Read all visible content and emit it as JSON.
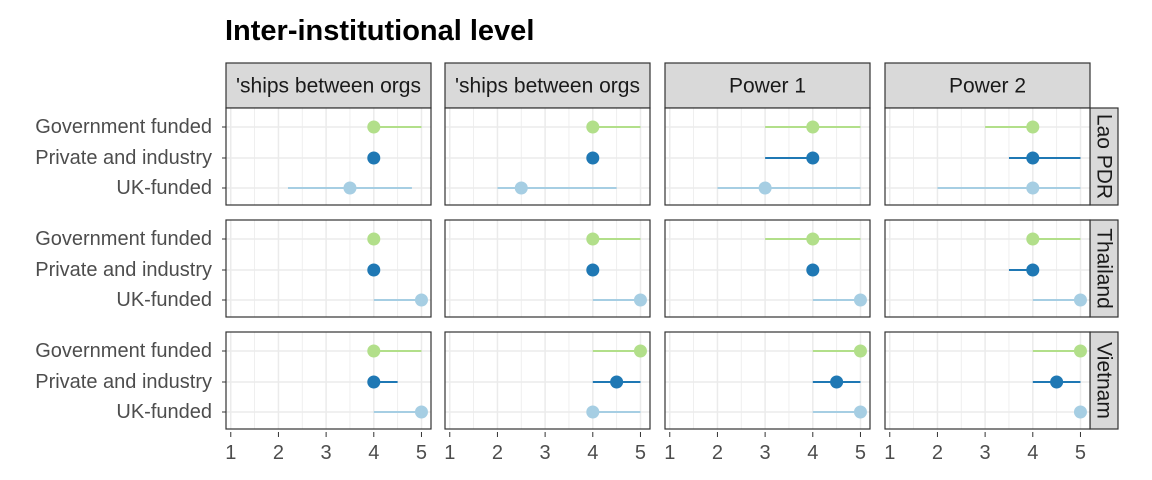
{
  "chart_data": {
    "type": "scatter",
    "title": "Inter-institutional level",
    "columns": [
      "'ships between orgs",
      "'ships between orgs",
      "Power 1",
      "Power 2"
    ],
    "rows": [
      "Lao PDR",
      "Thailand",
      "Vietnam"
    ],
    "categories": [
      "Government funded",
      "Private and industry",
      "UK-funded"
    ],
    "xlim": [
      0.9,
      5.2
    ],
    "x_ticks": [
      1,
      2,
      3,
      4,
      5
    ],
    "grid": true,
    "colors": {
      "Government funded": "#b2df8a",
      "Private and industry": "#1f78b4",
      "UK-funded": "#a6cee3",
      "strip_fill": "#d9d9d9",
      "grid": "#ebebeb",
      "border": "#333333"
    },
    "panels": [
      [
        [
          {
            "point": 4,
            "range": [
              4,
              5
            ]
          },
          {
            "point": 4,
            "range": [
              4,
              4
            ]
          },
          {
            "point": 3.5,
            "range": [
              2.2,
              4.8
            ]
          }
        ],
        [
          {
            "point": 4,
            "range": [
              4,
              5
            ]
          },
          {
            "point": 4,
            "range": [
              4,
              4
            ]
          },
          {
            "point": 2.5,
            "range": [
              2,
              4.5
            ]
          }
        ],
        [
          {
            "point": 4,
            "range": [
              3,
              5
            ]
          },
          {
            "point": 4,
            "range": [
              3,
              4
            ]
          },
          {
            "point": 3,
            "range": [
              2,
              5
            ]
          }
        ],
        [
          {
            "point": 4,
            "range": [
              3,
              4
            ]
          },
          {
            "point": 4,
            "range": [
              3.5,
              5
            ]
          },
          {
            "point": 4,
            "range": [
              2,
              5
            ]
          }
        ]
      ],
      [
        [
          {
            "point": 4,
            "range": [
              4,
              4
            ]
          },
          {
            "point": 4,
            "range": [
              4,
              4
            ]
          },
          {
            "point": 5,
            "range": [
              4,
              5
            ]
          }
        ],
        [
          {
            "point": 4,
            "range": [
              4,
              5
            ]
          },
          {
            "point": 4,
            "range": [
              4,
              4
            ]
          },
          {
            "point": 5,
            "range": [
              4,
              5
            ]
          }
        ],
        [
          {
            "point": 4,
            "range": [
              3,
              5
            ]
          },
          {
            "point": 4,
            "range": [
              4,
              4
            ]
          },
          {
            "point": 5,
            "range": [
              4,
              5
            ]
          }
        ],
        [
          {
            "point": 4,
            "range": [
              4,
              5
            ]
          },
          {
            "point": 4,
            "range": [
              3.5,
              4
            ]
          },
          {
            "point": 5,
            "range": [
              4,
              5
            ]
          }
        ]
      ],
      [
        [
          {
            "point": 4,
            "range": [
              4,
              5
            ]
          },
          {
            "point": 4,
            "range": [
              4,
              4.5
            ]
          },
          {
            "point": 5,
            "range": [
              4,
              5
            ]
          }
        ],
        [
          {
            "point": 5,
            "range": [
              4,
              5
            ]
          },
          {
            "point": 4.5,
            "range": [
              4,
              5
            ]
          },
          {
            "point": 4,
            "range": [
              4,
              5
            ]
          }
        ],
        [
          {
            "point": 5,
            "range": [
              4,
              5
            ]
          },
          {
            "point": 4.5,
            "range": [
              4,
              5
            ]
          },
          {
            "point": 5,
            "range": [
              4,
              5
            ]
          }
        ],
        [
          {
            "point": 5,
            "range": [
              4,
              5
            ]
          },
          {
            "point": 4.5,
            "range": [
              4,
              5
            ]
          },
          {
            "point": 5,
            "range": [
              5,
              5
            ]
          }
        ]
      ]
    ]
  }
}
